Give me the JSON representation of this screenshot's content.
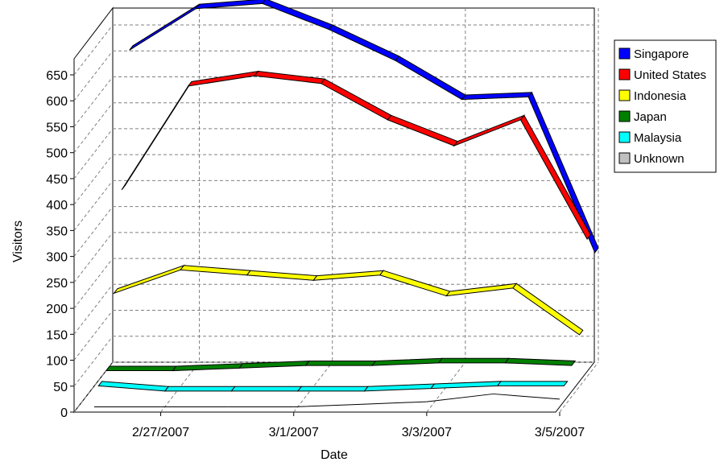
{
  "chart_data": {
    "type": "line",
    "style": "3d-ribbon",
    "xlabel": "Date",
    "ylabel": "Visitors",
    "ylim": [
      0,
      650
    ],
    "y_ticks": [
      0,
      50,
      100,
      150,
      200,
      250,
      300,
      350,
      400,
      450,
      500,
      550,
      600,
      650
    ],
    "x": [
      "2/26/2007",
      "2/27/2007",
      "2/28/2007",
      "3/1/2007",
      "3/2/2007",
      "3/3/2007",
      "3/4/2007",
      "3/5/2007"
    ],
    "x_tick_labels": [
      "2/27/2007",
      "3/1/2007",
      "3/3/2007",
      "3/5/2007"
    ],
    "grid": true,
    "legend_position": "right",
    "series": [
      {
        "name": "Singapore",
        "color": "#0000ff",
        "values": [
          610,
          690,
          700,
          650,
          590,
          515,
          520,
          220
        ]
      },
      {
        "name": "United States",
        "color": "#ff0000",
        "values": [
          360,
          560,
          580,
          565,
          495,
          445,
          495,
          265
        ]
      },
      {
        "name": "Indonesia",
        "color": "#ffff00",
        "values": [
          180,
          225,
          215,
          205,
          215,
          175,
          190,
          100
        ]
      },
      {
        "name": "Japan",
        "color": "#008000",
        "values": [
          50,
          50,
          55,
          60,
          60,
          65,
          65,
          60
        ]
      },
      {
        "name": "Malaysia",
        "color": "#00ffff",
        "values": [
          40,
          30,
          30,
          30,
          30,
          35,
          40,
          40
        ]
      },
      {
        "name": "Unknown",
        "color": "#c0c0c0",
        "values": [
          10,
          10,
          10,
          10,
          15,
          20,
          35,
          25
        ]
      }
    ]
  }
}
